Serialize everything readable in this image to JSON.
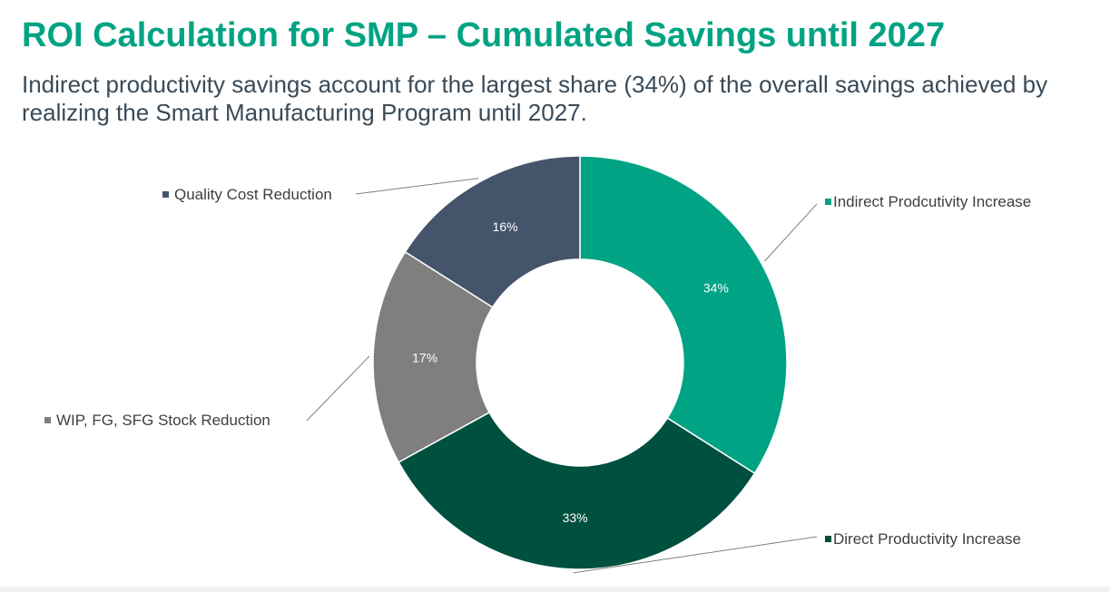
{
  "slide": {
    "title": "ROI Calculation for SMP – Cumulated Savings until 2027",
    "subtitle": "Indirect productivity savings account for the largest share (34%) of the overall savings achieved by realizing the Smart Manufacturing Program until 2027."
  },
  "colors": {
    "title": "#00A383",
    "subtitle": "#3A4A57",
    "legend_text": "#3F3F3F",
    "leader_line": "#7F7F7F"
  },
  "chart_data": {
    "type": "pie",
    "donut": true,
    "start": "12 o'clock, clockwise",
    "slices": [
      {
        "label": "Indirect Prodcutivity Increase",
        "value": 34,
        "display": "34%",
        "color": "#00A383"
      },
      {
        "label": "Direct Productivity Increase",
        "value": 33,
        "display": "33%",
        "color": "#00503F"
      },
      {
        "label": "WIP, FG, SFG Stock Reduction",
        "value": 17,
        "display": "17%",
        "color": "#7F7F7F"
      },
      {
        "label": "Quality Cost Reduction",
        "value": 16,
        "display": "16%",
        "color": "#44546A"
      }
    ]
  }
}
